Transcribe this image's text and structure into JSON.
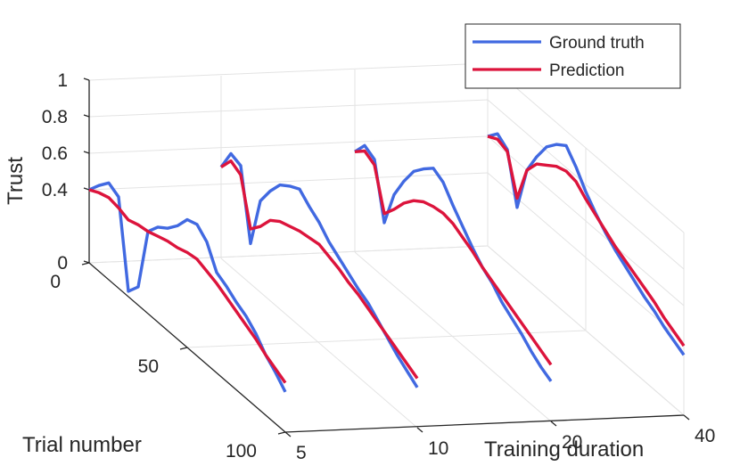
{
  "chart_data": {
    "type": "line",
    "title": "",
    "xlabel": "Training duration",
    "ylabel": "Trial number",
    "zlabel": "Trust",
    "x_ticks": [
      "5",
      "10",
      "20",
      "40"
    ],
    "y_ticks": [
      "0",
      "50",
      "100"
    ],
    "z_ticks": [
      "0",
      "0.4",
      "0.6",
      "0.8",
      "1"
    ],
    "zlim": [
      0,
      1
    ],
    "ylim": [
      0,
      100
    ],
    "grid": true,
    "legend_position": "top-right",
    "series": [
      {
        "name": "Ground truth",
        "color": "#4169E1",
        "curves": [
          {
            "x": "5",
            "trials": [
              0,
              5,
              10,
              15,
              20,
              25,
              30,
              35,
              40,
              45,
              50,
              55,
              60,
              65,
              70,
              75,
              80,
              85,
              90,
              95,
              100
            ],
            "trust": [
              0.4,
              0.47,
              0.53,
              0.5,
              0.03,
              0.1,
              0.45,
              0.52,
              0.56,
              0.62,
              0.7,
              0.72,
              0.67,
              0.55,
              0.52,
              0.48,
              0.45,
              0.4,
              0.33,
              0.28,
              0.22
            ]
          },
          {
            "x": "10",
            "trials": [
              0,
              5,
              10,
              15,
              20,
              25,
              30,
              35,
              40,
              45,
              50,
              55,
              60,
              65,
              70,
              75,
              80,
              85,
              90,
              95,
              100
            ],
            "trust": [
              0.5,
              0.62,
              0.6,
              0.22,
              0.5,
              0.6,
              0.68,
              0.72,
              0.75,
              0.7,
              0.66,
              0.6,
              0.56,
              0.52,
              0.48,
              0.45,
              0.4,
              0.35,
              0.3,
              0.26,
              0.22
            ]
          },
          {
            "x": "20",
            "trials": [
              0,
              5,
              10,
              15,
              20,
              25,
              30,
              35,
              40,
              45,
              50,
              55,
              60,
              65,
              70,
              75,
              80,
              85,
              90,
              95,
              100
            ],
            "trust": [
              0.55,
              0.63,
              0.6,
              0.3,
              0.5,
              0.62,
              0.72,
              0.78,
              0.83,
              0.8,
              0.72,
              0.65,
              0.58,
              0.52,
              0.48,
              0.42,
              0.38,
              0.34,
              0.29,
              0.25,
              0.22
            ]
          },
          {
            "x": "40",
            "trials": [
              0,
              5,
              10,
              15,
              20,
              25,
              30,
              35,
              40,
              45,
              50,
              55,
              60,
              65,
              70,
              75,
              80,
              85,
              90,
              95,
              100
            ],
            "trust": [
              0.6,
              0.66,
              0.62,
              0.35,
              0.6,
              0.72,
              0.82,
              0.88,
              0.92,
              0.85,
              0.76,
              0.69,
              0.63,
              0.58,
              0.54,
              0.5,
              0.46,
              0.43,
              0.39,
              0.36,
              0.33
            ]
          }
        ]
      },
      {
        "name": "Prediction",
        "color": "#DC143C",
        "curves": [
          {
            "x": "5",
            "trials": [
              0,
              5,
              10,
              15,
              20,
              25,
              30,
              35,
              40,
              45,
              50,
              55,
              60,
              65,
              70,
              75,
              80,
              85,
              90,
              95,
              100
            ],
            "trust": [
              0.4,
              0.43,
              0.45,
              0.44,
              0.42,
              0.44,
              0.45,
              0.47,
              0.49,
              0.5,
              0.52,
              0.53,
              0.51,
              0.49,
              0.46,
              0.43,
              0.4,
              0.37,
              0.33,
              0.3,
              0.27
            ]
          },
          {
            "x": "10",
            "trials": [
              0,
              5,
              10,
              15,
              20,
              25,
              30,
              35,
              40,
              45,
              50,
              55,
              60,
              65,
              70,
              75,
              80,
              85,
              90,
              95,
              100
            ],
            "trust": [
              0.5,
              0.58,
              0.55,
              0.3,
              0.36,
              0.44,
              0.48,
              0.5,
              0.52,
              0.53,
              0.54,
              0.52,
              0.5,
              0.47,
              0.45,
              0.42,
              0.39,
              0.36,
              0.33,
              0.3,
              0.27
            ]
          },
          {
            "x": "20",
            "trials": [
              0,
              5,
              10,
              15,
              20,
              25,
              30,
              35,
              40,
              45,
              50,
              55,
              60,
              65,
              70,
              75,
              80,
              85,
              90,
              95,
              100
            ],
            "trust": [
              0.55,
              0.6,
              0.57,
              0.35,
              0.42,
              0.5,
              0.56,
              0.6,
              0.62,
              0.63,
              0.62,
              0.59,
              0.56,
              0.52,
              0.49,
              0.46,
              0.43,
              0.4,
              0.37,
              0.34,
              0.31
            ]
          },
          {
            "x": "40",
            "trials": [
              0,
              5,
              10,
              15,
              20,
              25,
              30,
              35,
              40,
              45,
              50,
              55,
              60,
              65,
              70,
              75,
              80,
              85,
              90,
              95,
              100
            ],
            "trust": [
              0.6,
              0.63,
              0.61,
              0.4,
              0.6,
              0.68,
              0.72,
              0.76,
              0.78,
              0.77,
              0.72,
              0.68,
              0.64,
              0.6,
              0.57,
              0.54,
              0.51,
              0.48,
              0.44,
              0.41,
              0.38
            ]
          }
        ]
      }
    ]
  }
}
